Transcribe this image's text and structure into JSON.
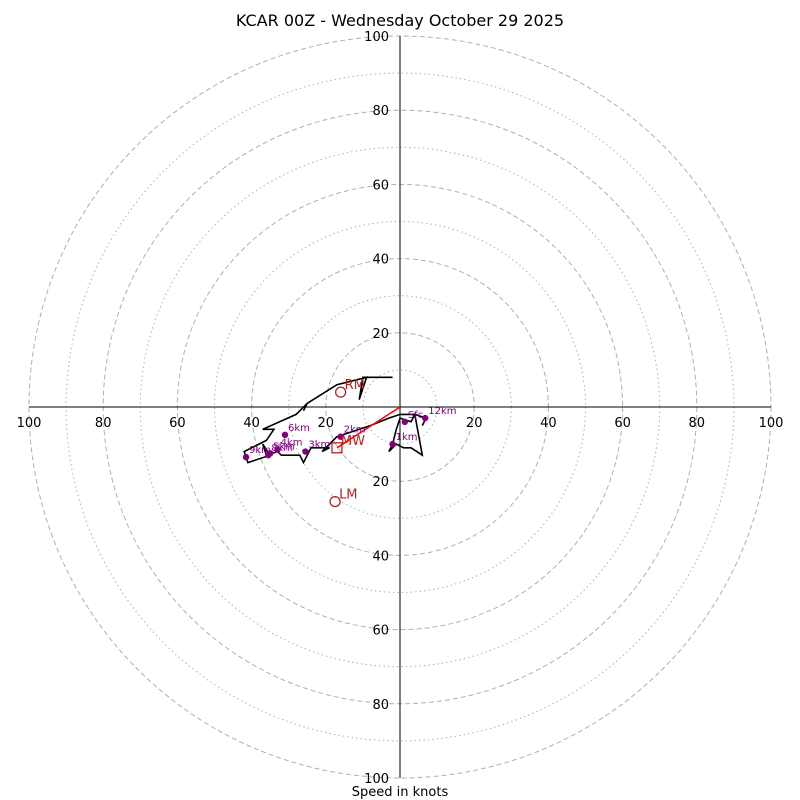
{
  "chart_data": {
    "type": "hodograph",
    "title": "KCAR 00Z - Wednesday October 29 2025",
    "xlabel": "Speed in knots",
    "range_knots": 100,
    "ring_major": [
      20,
      40,
      60,
      80,
      100
    ],
    "ring_minor": [
      10,
      30,
      50,
      70,
      90
    ],
    "tick_labels": {
      "x_left": [
        "100",
        "80",
        "60",
        "40",
        "20"
      ],
      "x_right": [
        "20",
        "40",
        "60",
        "80",
        "100"
      ],
      "y_top": [
        "100",
        "80",
        "60",
        "40",
        "20"
      ],
      "y_bottom": [
        "20",
        "40",
        "60",
        "80",
        "100"
      ]
    },
    "hodograph_trace": {
      "color": "#000000",
      "points_uv": [
        [
          -2,
          8
        ],
        [
          -10,
          8
        ],
        [
          -11,
          2
        ],
        [
          -9,
          8
        ],
        [
          -17,
          6
        ],
        [
          -25,
          1
        ],
        [
          -26,
          -1
        ],
        [
          -25,
          1
        ],
        [
          -28,
          -2
        ],
        [
          -37,
          -6
        ],
        [
          -34,
          -6
        ],
        [
          -36,
          -9
        ],
        [
          -38,
          -10
        ],
        [
          -42,
          -12
        ],
        [
          -41,
          -15
        ],
        [
          -35,
          -13
        ],
        [
          -37,
          -10
        ],
        [
          -36,
          -13
        ],
        [
          -33,
          -12
        ],
        [
          -32,
          -13
        ],
        [
          -27,
          -13
        ],
        [
          -26,
          -15
        ],
        [
          -24,
          -11
        ],
        [
          -19,
          -11
        ],
        [
          -21,
          -12
        ],
        [
          -17,
          -8
        ],
        [
          -14,
          -7
        ],
        [
          -8,
          -5
        ],
        [
          -3,
          -3
        ],
        [
          0,
          -2
        ],
        [
          2,
          -2
        ],
        [
          4,
          -2
        ],
        [
          3,
          -4
        ],
        [
          0,
          -3
        ],
        [
          -1,
          -6
        ],
        [
          -2,
          -10
        ],
        [
          -3,
          -12
        ],
        [
          -1,
          -10
        ],
        [
          1,
          -11
        ],
        [
          3,
          -11
        ],
        [
          6,
          -13
        ],
        [
          4,
          -2
        ],
        [
          7,
          -3
        ],
        [
          6,
          -5
        ]
      ]
    },
    "height_markers": [
      {
        "label": "Sfc",
        "u": 1.3,
        "v": -4
      },
      {
        "label": "1km",
        "u": -2,
        "v": -10
      },
      {
        "label": "2km",
        "u": -16,
        "v": -8
      },
      {
        "label": "3km",
        "u": -25.5,
        "v": -12
      },
      {
        "label": "4km",
        "u": -33,
        "v": -11.5
      },
      {
        "label": "5km",
        "u": -35,
        "v": -12.5
      },
      {
        "label": "6km",
        "u": -31,
        "v": -7.5
      },
      {
        "label": "8km",
        "u": -35.5,
        "v": -13
      },
      {
        "label": "9km",
        "u": -41.5,
        "v": -13.5
      },
      {
        "label": "12km",
        "u": 6.8,
        "v": -3
      }
    ],
    "storm_motion_vector": {
      "color": "#ff0000",
      "from": [
        0,
        0
      ],
      "to": [
        -17,
        -11
      ]
    },
    "storm_motions": [
      {
        "label": "RM",
        "u": -16,
        "v": 4,
        "marker": "circle"
      },
      {
        "label": "MW",
        "u": -17,
        "v": -11,
        "marker": "square"
      },
      {
        "label": "LM",
        "u": -17.5,
        "v": -25.5,
        "marker": "circle"
      }
    ]
  },
  "colors": {
    "trace": "#000000",
    "storm_vector": "#ff0000",
    "markers": "#800080",
    "storm_labels": "#b22222",
    "rings": "#b0b0b0"
  }
}
